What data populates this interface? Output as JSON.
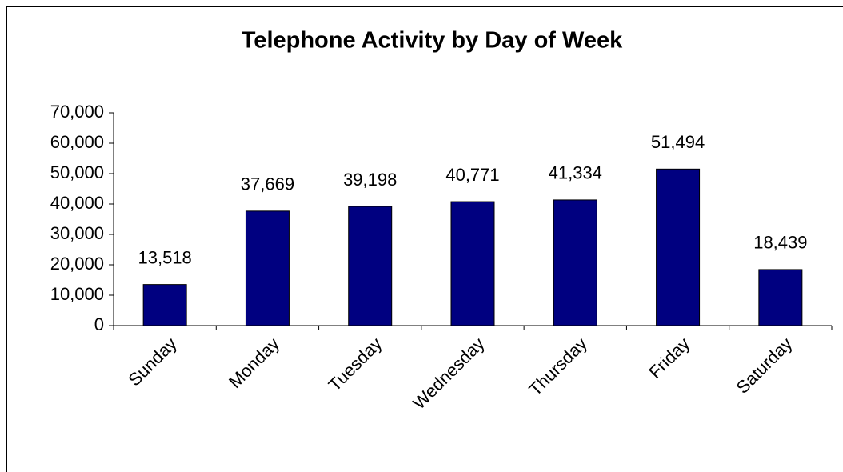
{
  "chart_data": {
    "type": "bar",
    "title": "Telephone Activity by Day of Week",
    "categories": [
      "Sunday",
      "Monday",
      "Tuesday",
      "Wednesday",
      "Thursday",
      "Friday",
      "Saturday"
    ],
    "values": [
      13518,
      37669,
      39198,
      40771,
      41334,
      51494,
      18439
    ],
    "value_labels": [
      "13,518",
      "37,669",
      "39,198",
      "40,771",
      "41,334",
      "51,494",
      "18,439"
    ],
    "color": "#000080",
    "ylim": [
      0,
      70000
    ],
    "yticks": [
      0,
      {
        "value": 10000,
        "label": "10,000"
      },
      {
        "value": 20000,
        "label": "20,000"
      },
      {
        "value": 30000,
        "label": "30,000"
      },
      {
        "value": 40000,
        "label": "40,000"
      },
      {
        "value": 50000,
        "label": "50,000"
      },
      {
        "value": 60000,
        "label": "60,000"
      },
      {
        "value": 70000,
        "label": "70,000"
      }
    ],
    "grid": false
  }
}
